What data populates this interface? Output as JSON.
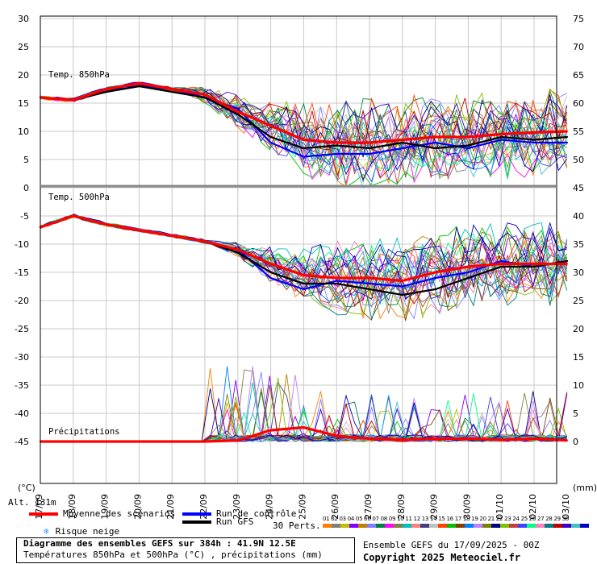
{
  "chart_data": {
    "type": "line",
    "title": "Diagramme des ensembles GEFS sur 384h : 41.9N 12.5E",
    "subtitle": "Températures 850hPa et 500hPa (°C) , précipitations (mm)",
    "x_ticks": [
      "18/09",
      "19/09",
      "20/09",
      "21/09",
      "22/09",
      "23/09",
      "24/09",
      "25/09",
      "26/09",
      "27/09",
      "28/09",
      "29/09",
      "30/09",
      "01/10",
      "02/10",
      "03/10"
    ],
    "x_start_tick": "17/09",
    "left_axis_ticks": [
      "30",
      "25",
      "20",
      "15",
      "10",
      "5",
      "0",
      "-5",
      "-10",
      "-15",
      "-20",
      "-25",
      "-30",
      "-35",
      "-40",
      "-45"
    ],
    "right_axis_ticks": [
      "75",
      "70",
      "65",
      "60",
      "55",
      "50",
      "45",
      "40",
      "35",
      "30",
      "25",
      "20",
      "15",
      "10",
      "5",
      "0"
    ],
    "left_unit": "(°C)",
    "right_unit": "(mm)",
    "panels": {
      "t850_label": "Temp. 850hPa",
      "t500_label": "Temp. 500hPa",
      "precip_label": "Précipitations"
    },
    "days": [
      0,
      1,
      2,
      3,
      4,
      5,
      6,
      7,
      8,
      9,
      10,
      11,
      12,
      13,
      14,
      15,
      16
    ],
    "series": [
      {
        "name": "Moyenne des scénarios",
        "color": "#ff0000",
        "role": "t850",
        "values": [
          16,
          15.5,
          17.5,
          18.5,
          17.5,
          16.5,
          13.5,
          11,
          8.5,
          8,
          8,
          8.5,
          9,
          9,
          9.5,
          9.8,
          10
        ]
      },
      {
        "name": "Run de contrôle",
        "color": "#0000ff",
        "role": "t850",
        "values": [
          16,
          15.5,
          17,
          18,
          17.5,
          16,
          14,
          8,
          5.5,
          6,
          6,
          7,
          8,
          7,
          8.5,
          8,
          8
        ]
      },
      {
        "name": "Run GFS",
        "color": "#000000",
        "role": "t850",
        "values": [
          16,
          15.5,
          17,
          18,
          17,
          16,
          13,
          9,
          7,
          7.5,
          7,
          8,
          7,
          7.5,
          9,
          8.5,
          9
        ]
      },
      {
        "name": "Moyenne des scénarios",
        "color": "#ff0000",
        "role": "t500",
        "values": [
          -7,
          -5,
          -6.5,
          -7.5,
          -8.5,
          -9.5,
          -11,
          -13.5,
          -15.5,
          -16,
          -16,
          -16.5,
          -15,
          -14,
          -13.5,
          -13.5,
          -13.5
        ]
      },
      {
        "name": "Run de contrôle",
        "color": "#0000ff",
        "role": "t500",
        "values": [
          -7,
          -5,
          -6.5,
          -7.5,
          -8.5,
          -9.5,
          -11,
          -16,
          -18,
          -16.5,
          -17,
          -17.5,
          -16,
          -15,
          -13,
          -14,
          -13
        ]
      },
      {
        "name": "Run GFS",
        "color": "#000000",
        "role": "t500",
        "values": [
          -7,
          -5,
          -6.5,
          -7.5,
          -8.5,
          -9.5,
          -11.5,
          -15,
          -17,
          -17,
          -18,
          -19,
          -18,
          -16,
          -14,
          -14,
          -13
        ]
      },
      {
        "name": "Moyenne des scénarios",
        "color": "#ff0000",
        "role": "precip",
        "values": [
          0,
          0,
          0,
          0,
          0,
          0,
          0.2,
          2,
          2.5,
          1,
          0.5,
          0.3,
          0.5,
          0.5,
          0.3,
          0.5,
          0.2
        ]
      }
    ],
    "ensemble_count": 30,
    "pert_colors": [
      "#ff8000",
      "#808080",
      "#c0c000",
      "#8000ff",
      "#c08000",
      "#8080ff",
      "#008040",
      "#ff00ff",
      "#808040",
      "#00c0c0",
      "#ff8080",
      "#404080",
      "#c0c0c0",
      "#ff4000",
      "#00c000",
      "#804000",
      "#0080ff",
      "#c080ff",
      "#808000",
      "#000080",
      "#80c000",
      "#c04040",
      "#4040ff",
      "#00ff80",
      "#ff80c0",
      "#008080",
      "#c00000",
      "#4000c0",
      "#40c0c0",
      "#0000c0"
    ]
  },
  "legend": {
    "alt": "Alt. 131m",
    "mean": "Moyenne des scénarios",
    "control": "Run de contrôle",
    "gfs": "Run GFS",
    "snow": "Risque neige",
    "perts": "30 Perts.",
    "pert_numbers": "01 02 03 04 05 06 07 08 09 10 11 12 13 14 15 16 17 18 19 20 21 22 23 24 25 26 27 28 29 30"
  },
  "footer": {
    "title": "Diagramme des ensembles GEFS sur 384h : 41.9N 12.5E",
    "subtitle": "Températures 850hPa et 500hPa (°C) , précipitations (mm)",
    "run": "Ensemble GEFS du 17/09/2025 - 00Z",
    "copyright": "Copyright 2025 Meteociel.fr"
  }
}
